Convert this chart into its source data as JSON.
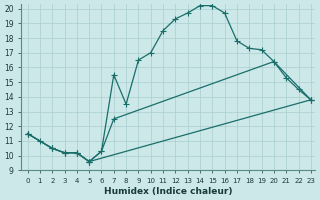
{
  "xlabel": "Humidex (Indice chaleur)",
  "bg_color": "#cce8e8",
  "grid_color": "#aacece",
  "line_color": "#1a6e6a",
  "xlim_min": -0.5,
  "xlim_max": 23.3,
  "ylim_min": 9.0,
  "ylim_max": 20.3,
  "yticks": [
    9,
    10,
    11,
    12,
    13,
    14,
    15,
    16,
    17,
    18,
    19,
    20
  ],
  "xticks": [
    0,
    1,
    2,
    3,
    4,
    5,
    6,
    7,
    8,
    9,
    10,
    11,
    12,
    13,
    14,
    15,
    16,
    17,
    18,
    19,
    20,
    21,
    22,
    23
  ],
  "line1_x": [
    0,
    1,
    2,
    3,
    4,
    5,
    6,
    7,
    8,
    9,
    10,
    11,
    12,
    13,
    14,
    15,
    16,
    17,
    18,
    19,
    20,
    21,
    22,
    23
  ],
  "line1_y": [
    11.5,
    11.0,
    10.5,
    10.2,
    10.2,
    9.6,
    10.3,
    15.5,
    13.5,
    16.5,
    17.0,
    18.5,
    19.3,
    19.7,
    20.2,
    20.2,
    19.7,
    17.8,
    17.3,
    17.2,
    16.4,
    15.3,
    14.5,
    13.8
  ],
  "line2_x": [
    0,
    2,
    3,
    4,
    5,
    6,
    7,
    20,
    23
  ],
  "line2_y": [
    11.5,
    10.5,
    10.2,
    10.2,
    9.6,
    10.3,
    12.5,
    16.4,
    13.8
  ],
  "line3_x": [
    0,
    2,
    3,
    4,
    5,
    23
  ],
  "line3_y": [
    11.5,
    10.5,
    10.2,
    10.2,
    9.6,
    13.8
  ]
}
